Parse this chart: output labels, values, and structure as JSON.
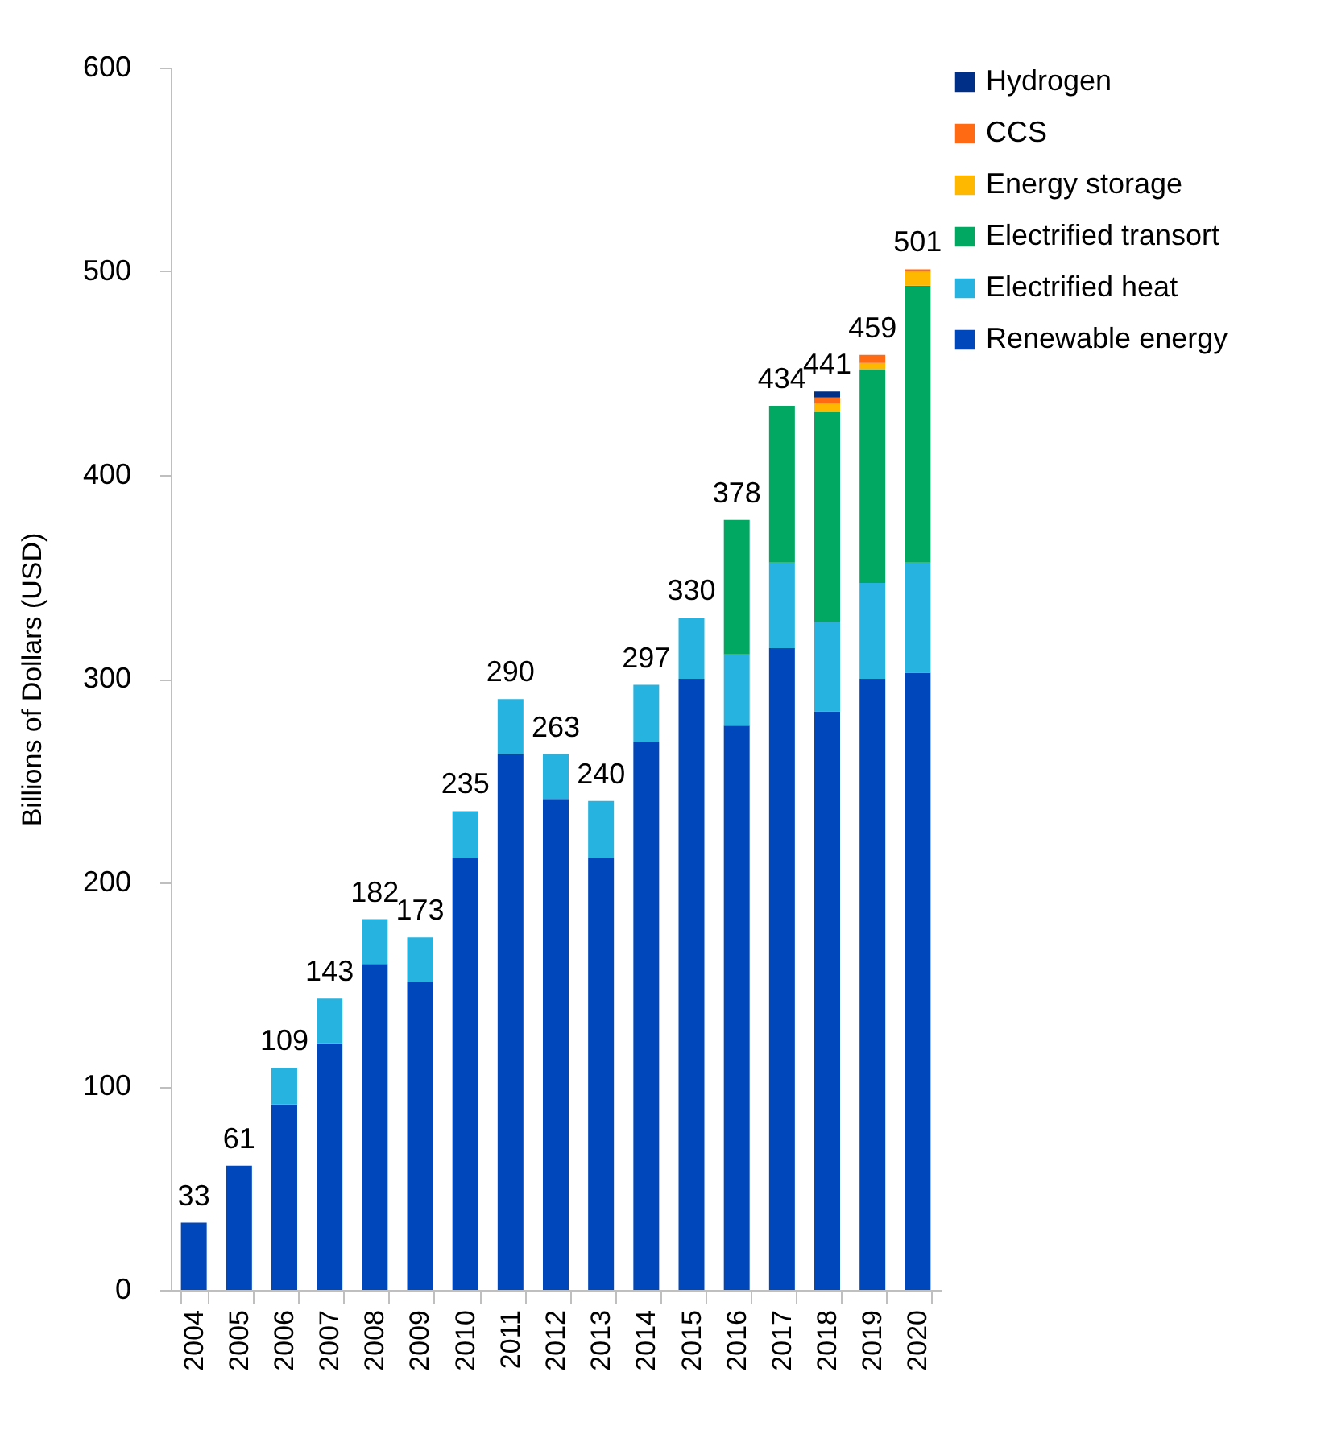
{
  "chart_data": {
    "type": "bar",
    "stacked": true,
    "ylabel": "Billions of Dollars (USD)",
    "categories": [
      "2004",
      "2005",
      "2006",
      "2007",
      "2008",
      "2009",
      "2010",
      "2011",
      "2012",
      "2013",
      "2014",
      "2015",
      "2016",
      "2017",
      "2018",
      "2019",
      "2020"
    ],
    "series": [
      {
        "name": "Renewable energy",
        "color": "#0047bb",
        "values": [
          33,
          61,
          91,
          121,
          160,
          151,
          212,
          263,
          241,
          212,
          269,
          300,
          277,
          315,
          284,
          300,
          303
        ]
      },
      {
        "name": "Electrified heat",
        "color": "#27b3df",
        "values": [
          null,
          null,
          18,
          22,
          22,
          22,
          23,
          27,
          22,
          28,
          28,
          30,
          35,
          42,
          44,
          47,
          54
        ]
      },
      {
        "name": "Electrified transort",
        "color": "#00a862",
        "values": [
          null,
          null,
          null,
          null,
          null,
          null,
          null,
          null,
          null,
          null,
          null,
          null,
          66,
          77,
          103,
          105,
          136
        ]
      },
      {
        "name": "Energy storage",
        "color": "#ffb800",
        "values": [
          null,
          null,
          null,
          null,
          null,
          null,
          null,
          null,
          null,
          null,
          null,
          null,
          null,
          null,
          4,
          3,
          7
        ]
      },
      {
        "name": "CCS",
        "color": "#ff6a13",
        "values": [
          null,
          null,
          null,
          null,
          null,
          null,
          null,
          null,
          null,
          null,
          null,
          null,
          null,
          null,
          3,
          4,
          1
        ]
      },
      {
        "name": "Hydrogen",
        "color": "#002f87",
        "values": [
          null,
          null,
          null,
          null,
          null,
          null,
          null,
          null,
          null,
          null,
          null,
          null,
          null,
          null,
          3,
          null,
          null
        ]
      }
    ],
    "totals": [
      "33",
      "61",
      "109",
      "143",
      "182",
      "173",
      "235",
      "290",
      "263",
      "240",
      "297",
      "330",
      "378",
      "434",
      "441",
      "459",
      "501"
    ],
    "ylim": [
      0,
      600
    ],
    "yticks": [
      0,
      100,
      200,
      300,
      400,
      500,
      600
    ],
    "grid": false,
    "legend": "right"
  }
}
